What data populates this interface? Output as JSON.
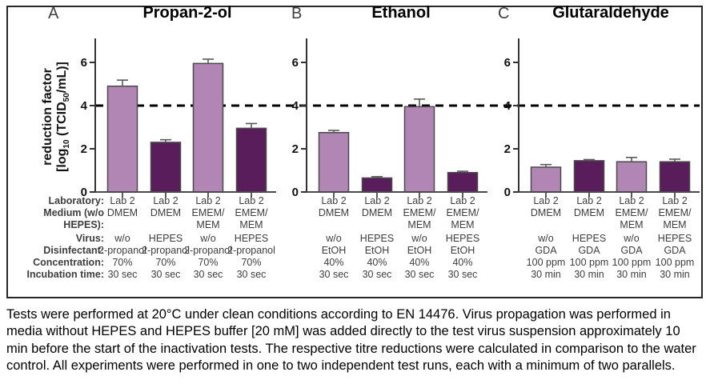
{
  "figure": {
    "ylabel": {
      "line1": "reduction factor",
      "l2_prefix": "[log",
      "l2_sub1": "10",
      "l2_mid": " (TCID",
      "l2_sub2": "50",
      "l2_suffix": "/mL)]"
    },
    "threshold_value": 4
  },
  "chart_data": [
    {
      "type": "bar",
      "panel_letter": "A",
      "title": "Propan-2-ol",
      "ylabel": "reduction factor [log10 (TCID50/mL)]",
      "ylim": [
        0,
        7
      ],
      "yticks": [
        0,
        2,
        4,
        6
      ],
      "threshold_line": 4,
      "categories": [
        "Lab 2 DMEM w/o",
        "Lab 2 DMEM HEPES",
        "Lab 2 EMEM/MEM w/o",
        "Lab 2 EMEM/MEM HEPES"
      ],
      "values": [
        4.9,
        2.3,
        5.95,
        2.95
      ],
      "errors": [
        0.28,
        0.12,
        0.2,
        0.22
      ],
      "bar_colors": [
        "#b286b4",
        "#591d5b",
        "#b286b4",
        "#591d5b"
      ],
      "conditions": {
        "laboratory": [
          "Lab 2",
          "Lab 2",
          "Lab 2",
          "Lab 2"
        ],
        "medium_wo_hepes": [
          "DMEM",
          "DMEM",
          "EMEM/MEM",
          "EMEM/MEM"
        ],
        "virus": [
          "w/o",
          "HEPES",
          "w/o",
          "HEPES"
        ],
        "disinfectant": [
          "2-propanol",
          "2-propanol",
          "2-propanol",
          "2-propanol"
        ],
        "concentration": [
          "70%",
          "70%",
          "70%",
          "70%"
        ],
        "incubation_time": [
          "30 sec",
          "30 sec",
          "30 sec",
          "30 sec"
        ]
      }
    },
    {
      "type": "bar",
      "panel_letter": "B",
      "title": "Ethanol",
      "ylabel": "reduction factor [log10 (TCID50/mL)]",
      "ylim": [
        0,
        7
      ],
      "yticks": [
        0,
        2,
        4,
        6
      ],
      "threshold_line": 4,
      "categories": [
        "Lab 2 DMEM w/o",
        "Lab 2 DMEM HEPES",
        "Lab 2 EMEM/MEM w/o",
        "Lab 2 EMEM/MEM HEPES"
      ],
      "values": [
        2.75,
        0.65,
        3.95,
        0.9
      ],
      "errors": [
        0.1,
        0.06,
        0.35,
        0.06
      ],
      "bar_colors": [
        "#b286b4",
        "#591d5b",
        "#b286b4",
        "#591d5b"
      ],
      "conditions": {
        "laboratory": [
          "Lab 2",
          "Lab 2",
          "Lab 2",
          "Lab 2"
        ],
        "medium_wo_hepes": [
          "DMEM",
          "DMEM",
          "EMEM/MEM",
          "EMEM/MEM"
        ],
        "virus": [
          "w/o",
          "HEPES",
          "w/o",
          "HEPES"
        ],
        "disinfectant": [
          "EtOH",
          "EtOH",
          "EtOH",
          "EtOH"
        ],
        "concentration": [
          "40%",
          "40%",
          "40%",
          "40%"
        ],
        "incubation_time": [
          "30 sec",
          "30 sec",
          "30 sec",
          "30 sec"
        ]
      }
    },
    {
      "type": "bar",
      "panel_letter": "C",
      "title": "Glutaraldehyde",
      "ylabel": "reduction factor [log10 (TCID50/mL)]",
      "ylim": [
        0,
        7
      ],
      "yticks": [
        0,
        2,
        4,
        6
      ],
      "threshold_line": 4,
      "categories": [
        "Lab 2 DMEM w/o",
        "Lab 2 DMEM HEPES",
        "Lab 2 EMEM/MEM w/o",
        "Lab 2 EMEM/MEM HEPES"
      ],
      "values": [
        1.15,
        1.45,
        1.4,
        1.4
      ],
      "errors": [
        0.12,
        0.05,
        0.2,
        0.12
      ],
      "bar_colors": [
        "#b286b4",
        "#591d5b",
        "#b286b4",
        "#591d5b"
      ],
      "conditions": {
        "laboratory": [
          "Lab 2",
          "Lab 2",
          "Lab 2",
          "Lab 2"
        ],
        "medium_wo_hepes": [
          "DMEM",
          "DMEM",
          "EMEM/MEM",
          "EMEM/MEM"
        ],
        "virus": [
          "w/o",
          "HEPES",
          "w/o",
          "HEPES"
        ],
        "disinfectant": [
          "GDA",
          "GDA",
          "GDA",
          "GDA"
        ],
        "concentration": [
          "100 ppm",
          "100 ppm",
          "100 ppm",
          "100 ppm"
        ],
        "incubation_time": [
          "30 min",
          "30 min",
          "30 min",
          "30 min"
        ]
      }
    }
  ],
  "table": {
    "rows": [
      {
        "label": "Laboratory:",
        "values": [
          [
            "Lab 2",
            "Lab 2",
            "Lab 2",
            "Lab 2"
          ],
          [
            "Lab 2",
            "Lab 2",
            "Lab 2",
            "Lab 2"
          ],
          [
            "Lab 2",
            "Lab 2",
            "Lab 2",
            "Lab 2"
          ]
        ]
      },
      {
        "label": "Medium (w/o HEPES):",
        "values": [
          [
            "DMEM",
            "DMEM",
            "EMEM/\nMEM",
            "EMEM/\nMEM"
          ],
          [
            "DMEM",
            "DMEM",
            "EMEM/\nMEM",
            "EMEM/\nMEM"
          ],
          [
            "DMEM",
            "DMEM",
            "EMEM/\nMEM",
            "EMEM/\nMEM"
          ]
        ]
      },
      {
        "label": "Virus:",
        "values": [
          [
            "w/o",
            "HEPES",
            "w/o",
            "HEPES"
          ],
          [
            "w/o",
            "HEPES",
            "w/o",
            "HEPES"
          ],
          [
            "w/o",
            "HEPES",
            "w/o",
            "HEPES"
          ]
        ]
      },
      {
        "label": "Disinfectant:",
        "values": [
          [
            "2-propanol",
            "2-propanol",
            "2-propanol",
            "2-propanol"
          ],
          [
            "EtOH",
            "EtOH",
            "EtOH",
            "EtOH"
          ],
          [
            "GDA",
            "GDA",
            "GDA",
            "GDA"
          ]
        ]
      },
      {
        "label": "Concentration:",
        "values": [
          [
            "70%",
            "70%",
            "70%",
            "70%"
          ],
          [
            "40%",
            "40%",
            "40%",
            "40%"
          ],
          [
            "100 ppm",
            "100 ppm",
            "100 ppm",
            "100 ppm"
          ]
        ]
      },
      {
        "label": "Incubation time:",
        "values": [
          [
            "30 sec",
            "30 sec",
            "30 sec",
            "30 sec"
          ],
          [
            "30 sec",
            "30 sec",
            "30 sec",
            "30 sec"
          ],
          [
            "30 min",
            "30 min",
            "30 min",
            "30 min"
          ]
        ]
      }
    ]
  },
  "caption": "Tests were performed at 20°C under clean conditions according to EN 14476. Virus propagation was performed in media without HEPES and HEPES buffer [20 mM] was added directly to the test virus suspension approximately 10 min before the start of the inactivation tests. The respective titre reductions were calculated in comparison to the water control. All experiments were performed in one to two independent test runs, each with a minimum of two parallels.",
  "colors": {
    "bar_light": "#b286b4",
    "bar_dark": "#591d5b",
    "bar_stroke": "#4a4a4a",
    "error_bar": "#595959",
    "axis": "#333333",
    "dashed_line": "#000000",
    "table_text": "#3d3d3d"
  }
}
